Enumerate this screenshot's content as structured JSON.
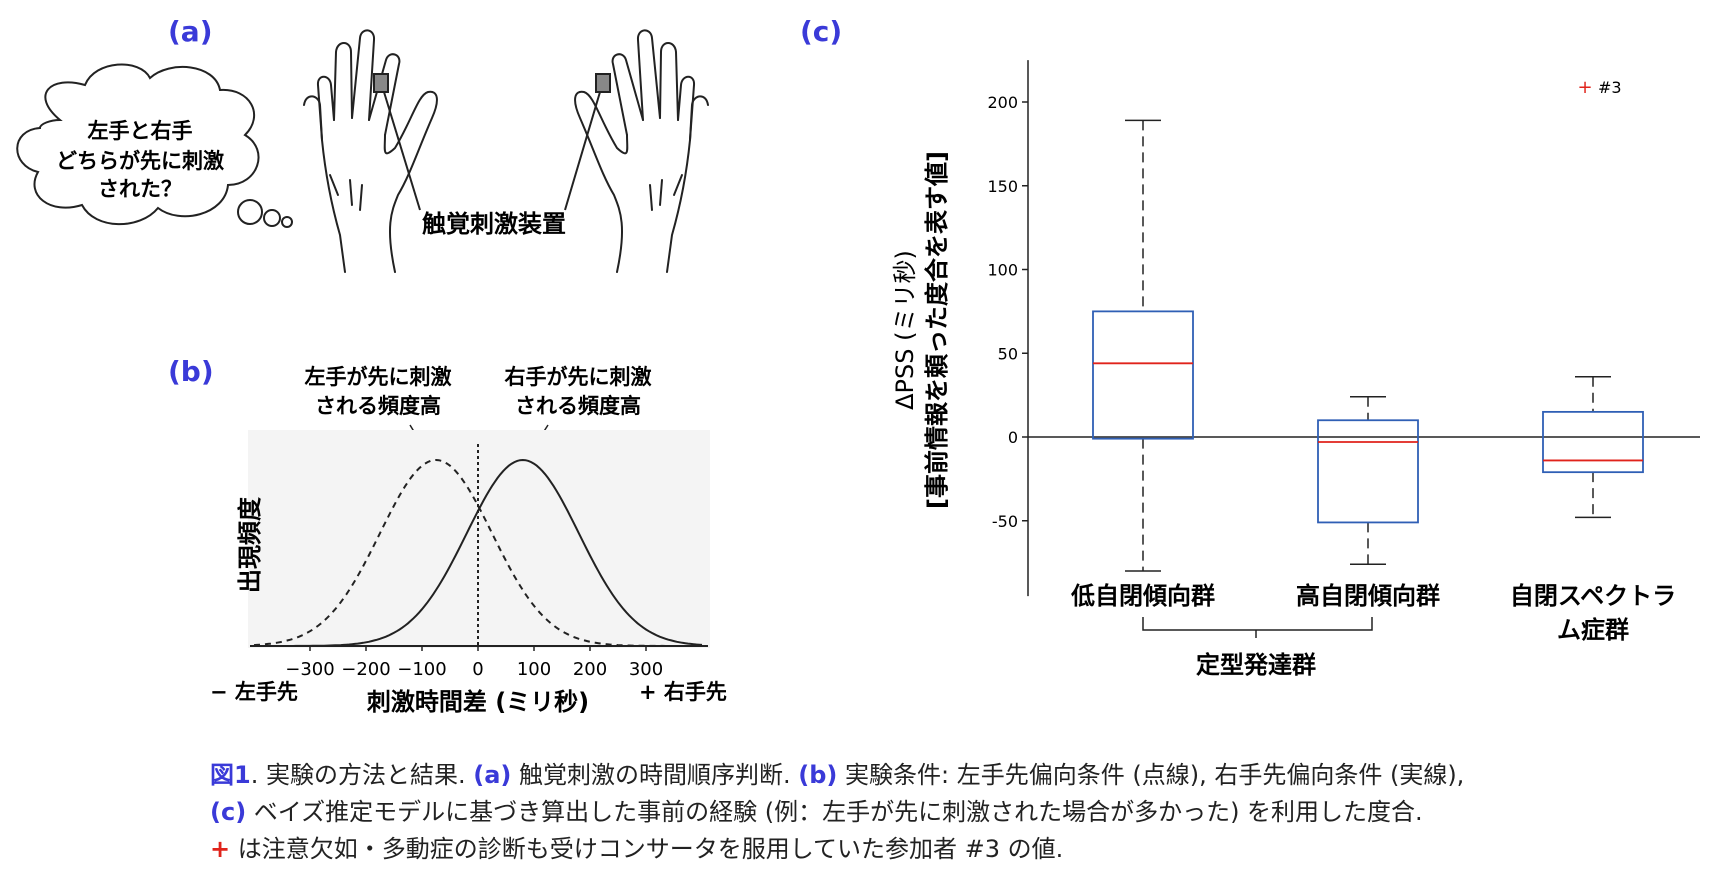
{
  "panels": {
    "a": {
      "label": "(a)",
      "thought": [
        "左手と右手",
        "どちらが先に刺激",
        "された？"
      ],
      "device_label": "触覚刺激装置"
    },
    "b": {
      "label": "(b)",
      "left_annotation": [
        "左手が先に刺激",
        "される頻度高"
      ],
      "right_annotation": [
        "右手が先に刺激",
        "される頻度高"
      ],
      "ylabel": "出現頻度",
      "xlabel": "刺激時間差 (ミリ秒)",
      "left_end": "− 左手先",
      "right_end": "+ 右手先"
    },
    "c": {
      "label": "(c)",
      "ylabel_line1": "ΔPSS (ミリ秒)",
      "ylabel_line2": "[事前情報を頼った度合を表す値]",
      "legend_marker": "+",
      "legend_text": "#3",
      "group_bracket_label": "定型発達群"
    }
  },
  "chart_data": [
    {
      "type": "line",
      "panel": "b",
      "x_ticks": [
        -300,
        -200,
        -100,
        0,
        100,
        200,
        300
      ],
      "xlim": [
        -400,
        400
      ],
      "series": [
        {
          "style": "dashed",
          "mean": -75,
          "sd": 100
        },
        {
          "style": "solid",
          "mean": 80,
          "sd": 100
        }
      ]
    },
    {
      "type": "box",
      "panel": "c",
      "categories": [
        "低自閉傾向群",
        "高自閉傾向群",
        "自閉スペクトラム症群"
      ],
      "ylim": [
        -95,
        225
      ],
      "y_ticks": [
        -50,
        0,
        50,
        100,
        150,
        200
      ],
      "boxes": [
        {
          "whisker_low": -80,
          "q1": -1,
          "median": 44,
          "q3": 75,
          "whisker_high": 189
        },
        {
          "whisker_low": -76,
          "q1": -51,
          "median": -3,
          "q3": 10,
          "whisker_high": 24
        },
        {
          "whisker_low": -48,
          "q1": -21,
          "median": -14,
          "q3": 15,
          "whisker_high": 36
        }
      ],
      "median_color": "#e0231b",
      "box_color": "#2f5fb5"
    }
  ],
  "caption": {
    "line1_fig": "図1",
    "line1_a": ". 実験の方法と結果. ",
    "line1_label_a": "(a)",
    "line1_b": " 触覚刺激の時間順序判断. ",
    "line1_label_b": "(b)",
    "line1_c": " 実験条件: 左手先偏向条件 (点線), 右手先偏向条件 (実線),",
    "line2_label_c": "(c)",
    "line2_text": " ベイズ推定モデルに基づき算出した事前の経験 (例：左手が先に刺激された場合が多かった) を利用した度合.",
    "line3_marker": "+",
    "line3_text": " は注意欠如・多動症の診断も受けコンサータを服用していた参加者 #3 の値."
  }
}
